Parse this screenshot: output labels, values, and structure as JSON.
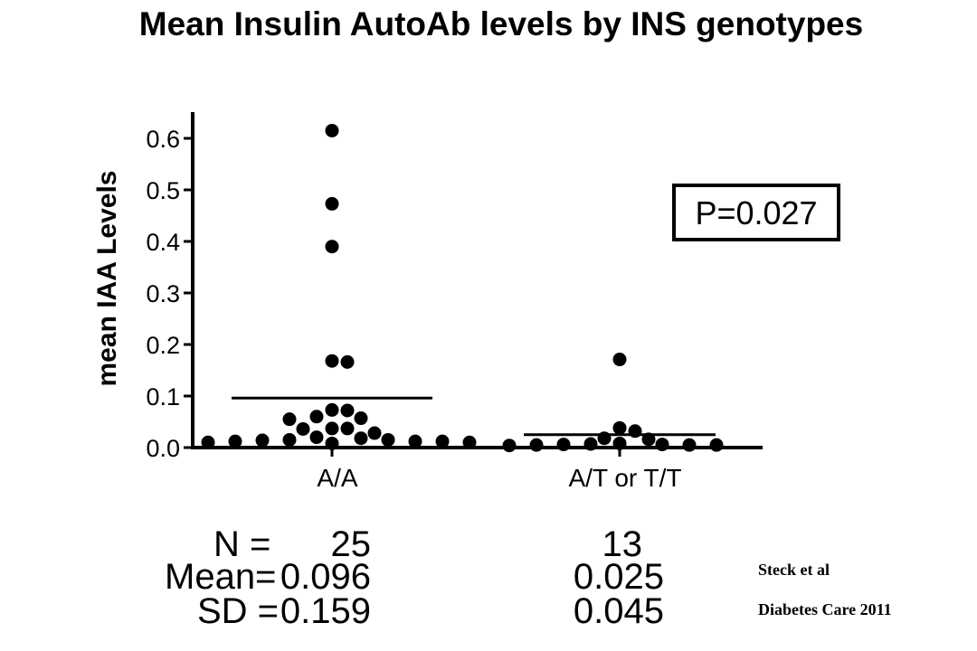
{
  "chart_data": {
    "type": "scatter",
    "title": "Mean Insulin AutoAb levels by INS genotypes",
    "ylabel": "mean IAA Levels",
    "xlabel": "",
    "ylim": [
      0.0,
      0.65
    ],
    "yticks": [
      "0.0",
      "0.1",
      "0.2",
      "0.3",
      "0.4",
      "0.5",
      "0.6"
    ],
    "ytick_values": [
      0.0,
      0.1,
      0.2,
      0.3,
      0.4,
      0.5,
      0.6
    ],
    "categories": [
      "A/A",
      "A/T or T/T"
    ],
    "groups": [
      {
        "category": "A/A",
        "mean_line": 0.096,
        "points": [
          0.615,
          0.473,
          0.39,
          0.166,
          0.168,
          0.072,
          0.073,
          0.057,
          0.055,
          0.06,
          0.037,
          0.036,
          0.037,
          0.028,
          0.02,
          0.018,
          0.015,
          0.015,
          0.014,
          0.012,
          0.012,
          0.012,
          0.01,
          0.01,
          0.008
        ]
      },
      {
        "category": "A/T or T/T",
        "mean_line": 0.025,
        "points": [
          0.171,
          0.038,
          0.032,
          0.018,
          0.016,
          0.008,
          0.007,
          0.006,
          0.006,
          0.005,
          0.005,
          0.005,
          0.004
        ]
      }
    ],
    "annotation": "P=0.027"
  },
  "stats": {
    "rows": [
      {
        "label": "N =",
        "a": "25",
        "b": "13"
      },
      {
        "label": "Mean=",
        "a": "0.096",
        "b": "0.025"
      },
      {
        "label": "SD =",
        "a": "0.159",
        "b": "0.045"
      }
    ]
  },
  "citation": {
    "line1": "Steck et al",
    "line2": "Diabetes Care 2011"
  }
}
